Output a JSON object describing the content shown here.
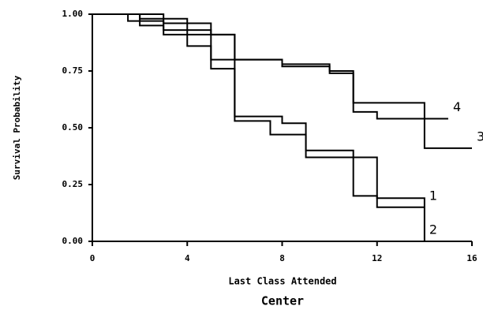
{
  "chart_data": {
    "type": "step",
    "title": "Center",
    "x_label": "Last Class Attended",
    "y_label": "Survival Probability",
    "xlim": [
      0,
      16
    ],
    "xticks": [
      0,
      4,
      8,
      12,
      16
    ],
    "ylim": [
      0,
      1
    ],
    "yticks": [
      {
        "value": 0,
        "label": "0.00"
      },
      {
        "value": 0.25,
        "label": "0.25"
      },
      {
        "value": 0.5,
        "label": "0.50"
      },
      {
        "value": 0.75,
        "label": "0.75"
      },
      {
        "value": 1,
        "label": "1.00"
      }
    ],
    "series": [
      {
        "name": "1",
        "color": "#000000",
        "x": [
          0,
          2,
          3,
          4,
          5,
          6,
          7.5,
          9,
          11,
          12,
          14
        ],
        "values": [
          1,
          0.98,
          0.96,
          0.93,
          0.76,
          0.53,
          0.47,
          0.37,
          0.2,
          0.15,
          0.15
        ]
      },
      {
        "name": "2",
        "color": "#000000",
        "x": [
          0,
          2,
          3,
          4,
          6,
          8,
          9,
          11,
          12,
          14
        ],
        "values": [
          1,
          0.97,
          0.93,
          0.91,
          0.55,
          0.52,
          0.4,
          0.37,
          0.19,
          0
        ]
      },
      {
        "name": "3",
        "color": "#000000",
        "x": [
          0,
          3,
          4,
          5,
          6,
          8,
          10,
          11,
          14,
          16
        ],
        "values": [
          1,
          0.98,
          0.96,
          0.91,
          0.8,
          0.78,
          0.75,
          0.61,
          0.41,
          0.41
        ]
      },
      {
        "name": "4",
        "color": "#000000",
        "x": [
          0,
          1.5,
          2,
          3,
          4,
          5,
          8,
          10,
          11,
          12,
          15
        ],
        "values": [
          1,
          0.97,
          0.95,
          0.91,
          0.86,
          0.8,
          0.77,
          0.74,
          0.57,
          0.54,
          0.54
        ]
      }
    ]
  }
}
